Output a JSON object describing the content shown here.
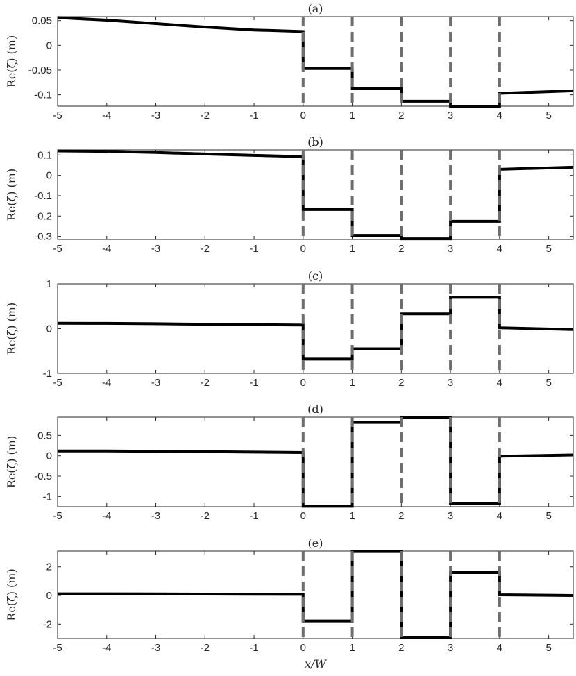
{
  "chart_data": [
    {
      "type": "line",
      "title": "(a)",
      "xlabel": "",
      "ylabel": "Re(ζ) (m)",
      "xlim": [
        -5,
        5.5
      ],
      "ylim": [
        -0.123,
        0.058
      ],
      "xticks": [
        "-5",
        "-4",
        "-3",
        "-2",
        "-1",
        "0",
        "1",
        "2",
        "3",
        "4",
        "5"
      ],
      "yticks": [
        {
          "value": 0.05,
          "label": "0.05"
        },
        {
          "value": 0,
          "label": "0"
        },
        {
          "value": -0.05,
          "label": "-0.05"
        },
        {
          "value": -0.1,
          "label": "-0.1"
        }
      ],
      "vlines": [
        0,
        1,
        2,
        3,
        4
      ],
      "series": [
        {
          "color": "#000000",
          "x": [
            -5,
            -4,
            -3,
            -2,
            -1,
            0,
            0,
            1,
            1,
            2,
            2,
            3,
            3,
            4,
            4,
            5.5
          ],
          "y": [
            0.056,
            0.051,
            0.044,
            0.037,
            0.031,
            0.028,
            -0.047,
            -0.047,
            -0.087,
            -0.087,
            -0.113,
            -0.113,
            -0.123,
            -0.123,
            -0.097,
            -0.092
          ]
        }
      ]
    },
    {
      "type": "line",
      "title": "(b)",
      "xlabel": "",
      "ylabel": "Re(ζ) (m)",
      "xlim": [
        -5,
        5.5
      ],
      "ylim": [
        -0.315,
        0.125
      ],
      "xticks": [
        "-5",
        "-4",
        "-3",
        "-2",
        "-1",
        "0",
        "1",
        "2",
        "3",
        "4",
        "5"
      ],
      "yticks": [
        {
          "value": 0.1,
          "label": "0.1"
        },
        {
          "value": 0,
          "label": "0"
        },
        {
          "value": -0.1,
          "label": "-0.1"
        },
        {
          "value": -0.2,
          "label": "-0.2"
        },
        {
          "value": -0.3,
          "label": "-0.3"
        }
      ],
      "vlines": [
        0,
        1,
        2,
        3,
        4
      ],
      "series": [
        {
          "color": "#000000",
          "x": [
            -5,
            -4,
            -3,
            -2,
            -1,
            0,
            0,
            1,
            1,
            2,
            2,
            3,
            3,
            4,
            4,
            5.5
          ],
          "y": [
            0.12,
            0.118,
            0.112,
            0.105,
            0.098,
            0.092,
            -0.168,
            -0.168,
            -0.295,
            -0.295,
            -0.312,
            -0.312,
            -0.226,
            -0.226,
            0.03,
            0.04
          ]
        }
      ]
    },
    {
      "type": "line",
      "title": "(c)",
      "xlabel": "",
      "ylabel": "Re(ζ) (m)",
      "xlim": [
        -5,
        5.5
      ],
      "ylim": [
        -1,
        1
      ],
      "xticks": [
        "-5",
        "-4",
        "-3",
        "-2",
        "-1",
        "0",
        "1",
        "2",
        "3",
        "4",
        "5"
      ],
      "yticks": [
        {
          "value": 1,
          "label": "1"
        },
        {
          "value": 0,
          "label": "0"
        },
        {
          "value": -1,
          "label": "-1"
        }
      ],
      "vlines": [
        0,
        1,
        2,
        3,
        4
      ],
      "series": [
        {
          "color": "#000000",
          "x": [
            -5,
            -4,
            -3,
            -2,
            -1,
            0,
            0,
            1,
            1,
            2,
            2,
            3,
            3,
            4,
            4,
            5.5
          ],
          "y": [
            0.12,
            0.118,
            0.11,
            0.1,
            0.09,
            0.08,
            -0.68,
            -0.68,
            -0.45,
            -0.45,
            0.33,
            0.33,
            0.7,
            0.7,
            0.02,
            -0.02
          ]
        }
      ]
    },
    {
      "type": "line",
      "title": "(d)",
      "xlabel": "",
      "ylabel": "Re(ζ) (m)",
      "xlim": [
        -5,
        5.5
      ],
      "ylim": [
        -1.25,
        0.95
      ],
      "xticks": [
        "-5",
        "-4",
        "-3",
        "-2",
        "-1",
        "0",
        "1",
        "2",
        "3",
        "4",
        "5"
      ],
      "yticks": [
        {
          "value": 0.5,
          "label": "0.5"
        },
        {
          "value": 0,
          "label": "0"
        },
        {
          "value": -0.5,
          "label": "-0.5"
        },
        {
          "value": -1,
          "label": "-1"
        }
      ],
      "vlines": [
        0,
        1,
        2,
        3,
        4
      ],
      "series": [
        {
          "color": "#000000",
          "x": [
            -5,
            -4,
            -3,
            -2,
            -1,
            0,
            0,
            1,
            1,
            2,
            2,
            3,
            3,
            4,
            4,
            5.5
          ],
          "y": [
            0.12,
            0.118,
            0.11,
            0.1,
            0.09,
            0.08,
            -1.24,
            -1.24,
            0.82,
            0.82,
            0.95,
            0.95,
            -1.17,
            -1.17,
            -0.01,
            0.02
          ]
        }
      ]
    },
    {
      "type": "line",
      "title": "(e)",
      "xlabel": "x/W",
      "ylabel": "Re(ζ) (m)",
      "xlim": [
        -5,
        5.5
      ],
      "ylim": [
        -3,
        3.1
      ],
      "xticks": [
        "-5",
        "-4",
        "-3",
        "-2",
        "-1",
        "0",
        "1",
        "2",
        "3",
        "4",
        "5"
      ],
      "yticks": [
        {
          "value": 2,
          "label": "2"
        },
        {
          "value": 0,
          "label": "0"
        },
        {
          "value": -2,
          "label": "-2"
        }
      ],
      "vlines": [
        0,
        1,
        2,
        3,
        4
      ],
      "series": [
        {
          "color": "#000000",
          "x": [
            -5,
            -4,
            -3,
            -2,
            -1,
            0,
            0,
            1,
            1,
            2,
            2,
            3,
            3,
            4,
            4,
            5.5
          ],
          "y": [
            0.12,
            0.12,
            0.11,
            0.1,
            0.09,
            0.08,
            -1.77,
            -1.77,
            3.07,
            3.07,
            -2.95,
            -2.95,
            1.6,
            1.6,
            0.05,
            0.0
          ]
        }
      ]
    }
  ]
}
